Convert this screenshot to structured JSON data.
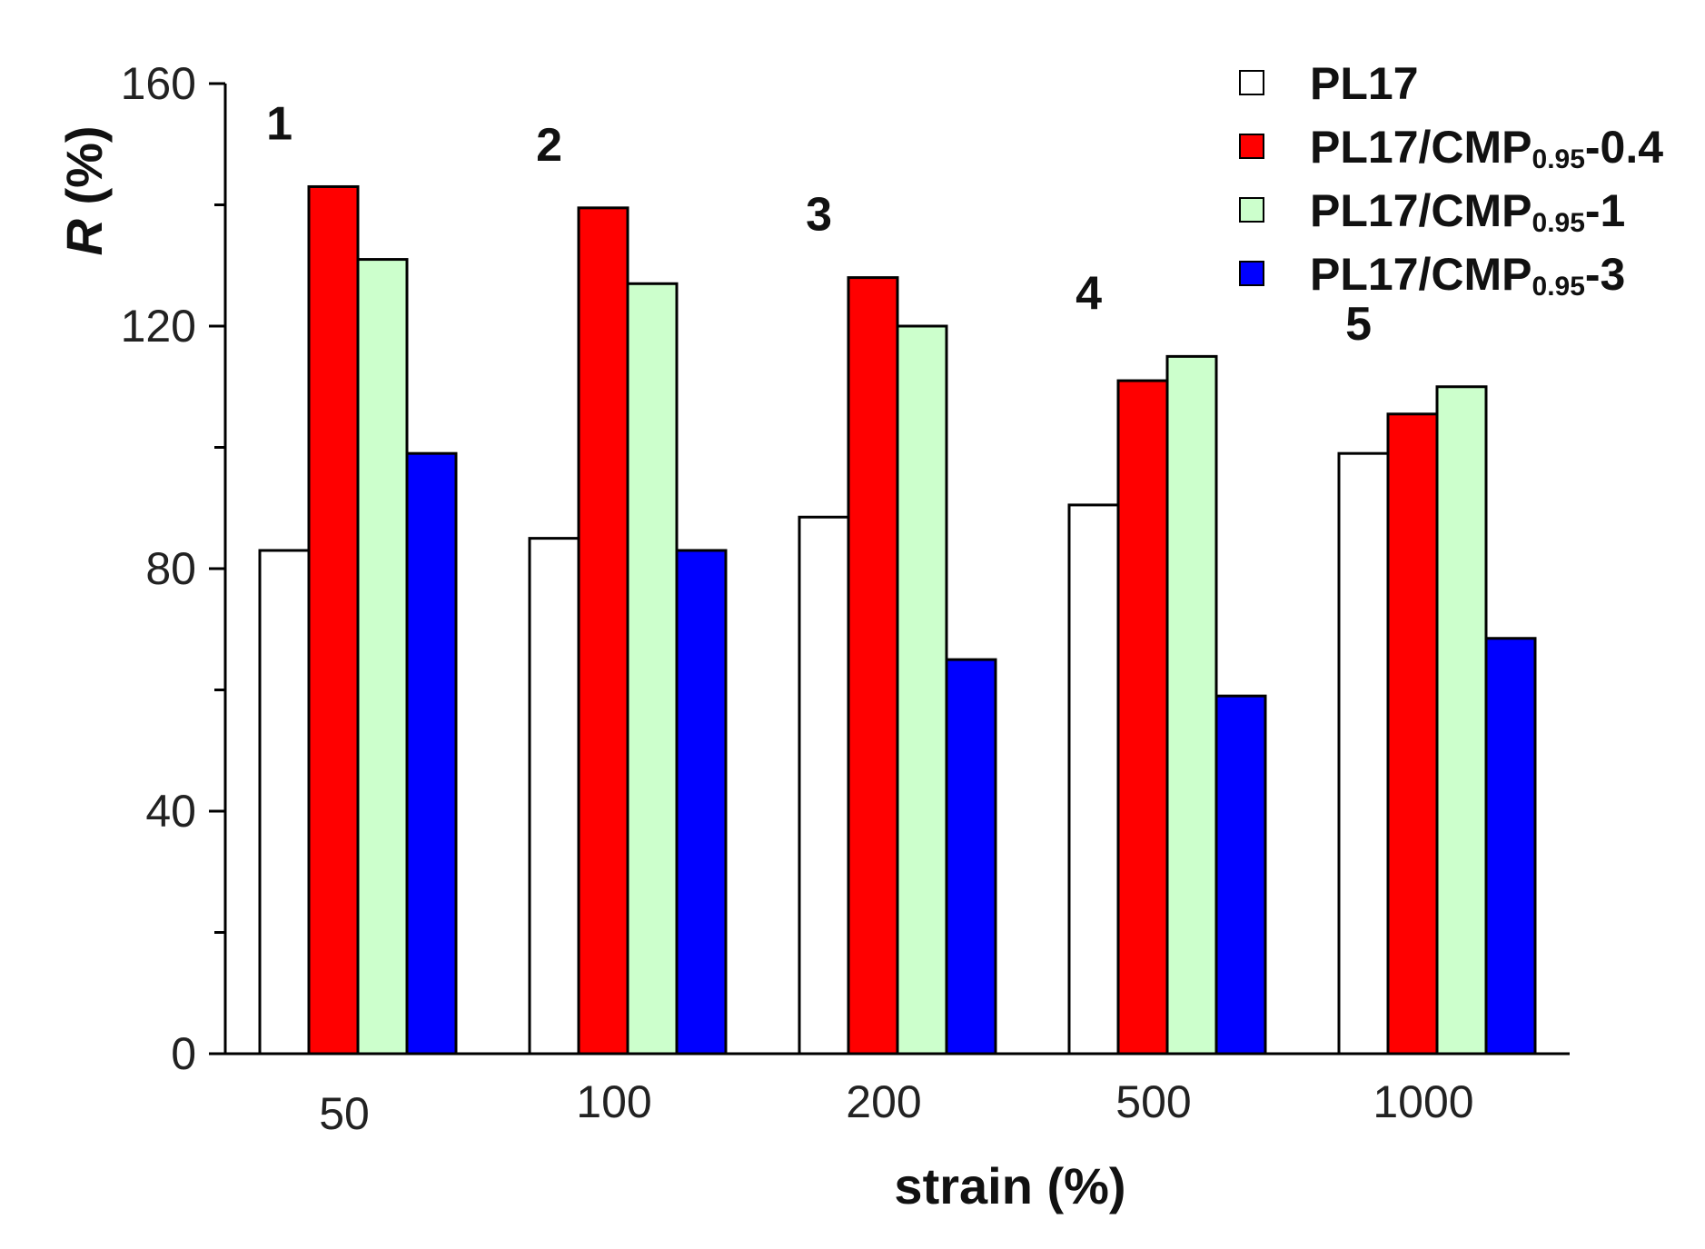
{
  "chart_data": {
    "type": "bar",
    "title": "",
    "xlabel": "strain (%)",
    "ylabel_italic": "R",
    "ylabel_rest": "(%)",
    "ylim": [
      0,
      160
    ],
    "yticks": [
      "0",
      "40",
      "80",
      "120",
      "160"
    ],
    "categories": [
      "50",
      "100",
      "200",
      "500",
      "1000"
    ],
    "group_labels": [
      "1",
      "2",
      "3",
      "4",
      "5"
    ],
    "series": [
      {
        "name": "PL17",
        "name_main": "PL17",
        "name_sub": "",
        "name_suffix": "",
        "color": "#ffffff",
        "values": [
          83,
          85,
          88.5,
          90.5,
          99
        ]
      },
      {
        "name": "PL17/CMP0.95-0.4",
        "name_main": "PL17/CMP",
        "name_sub": "0.95",
        "name_suffix": "-0.4",
        "color": "#ff0000",
        "values": [
          143,
          139.5,
          128,
          111,
          105.5
        ]
      },
      {
        "name": "PL17/CMP0.95-1",
        "name_main": "PL17/CMP",
        "name_sub": "0.95",
        "name_suffix": "-1",
        "color": "#ccffcc",
        "values": [
          131,
          127,
          120,
          115,
          110
        ]
      },
      {
        "name": "PL17/CMP0.95-3",
        "name_main": "PL17/CMP",
        "name_sub": "0.95",
        "name_suffix": "-3",
        "color": "#0000ff",
        "values": [
          99,
          83,
          65,
          59,
          68.5
        ]
      }
    ],
    "legend_position": "top-right"
  }
}
